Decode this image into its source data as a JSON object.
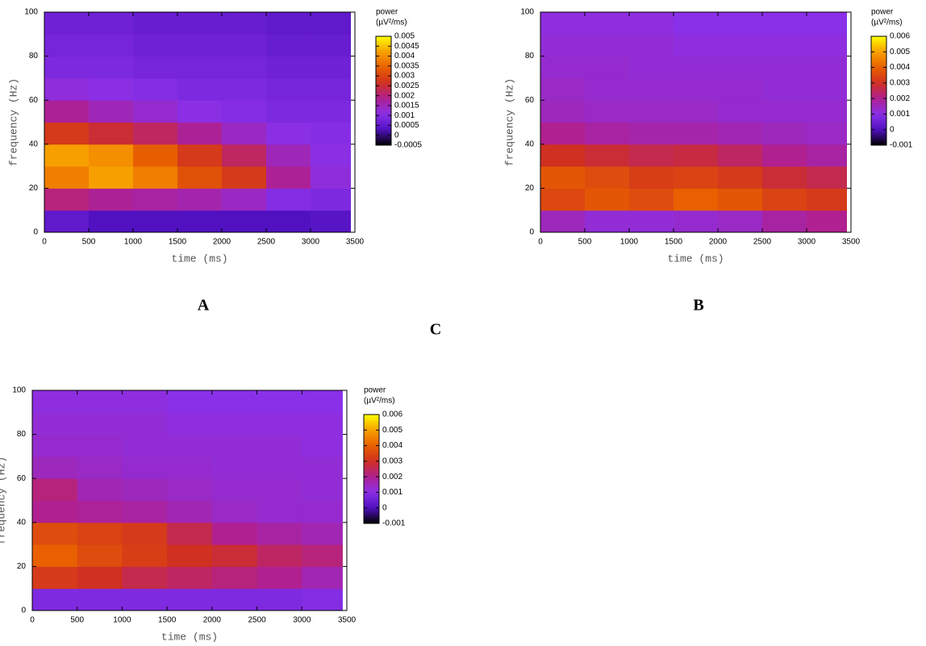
{
  "chart_data": [
    {
      "type": "heatmap",
      "panel_label": "A",
      "xlabel": "time (ms)",
      "ylabel": "frequency (Hz)",
      "colorbar_title": "power",
      "colorbar_unit": "(µV²/ms)",
      "xlim": [
        0,
        3500
      ],
      "xticks": [
        0,
        500,
        1000,
        1500,
        2000,
        2500,
        3000,
        3500
      ],
      "ylim": [
        0,
        100
      ],
      "yticks": [
        0,
        20,
        40,
        60,
        80,
        100
      ],
      "zlim": [
        -0.0005,
        0.005
      ],
      "zticks": [
        -0.0005,
        0,
        0.0005,
        0.001,
        0.0015,
        0.002,
        0.0025,
        0.003,
        0.0035,
        0.004,
        0.0045,
        0.005
      ],
      "colormap": [
        "#000000",
        "#5010c0",
        "#8a30e8",
        "#b02090",
        "#d03020",
        "#e86000",
        "#f8a000",
        "#ffff00"
      ],
      "x_edges": [
        0,
        500,
        1000,
        1500,
        2000,
        2500,
        3000,
        3450
      ],
      "y_edges": [
        0,
        10,
        20,
        30,
        40,
        50,
        60,
        70,
        80,
        90,
        100
      ],
      "z": [
        [
          0.0005,
          0.0003,
          0.0003,
          0.0003,
          0.0003,
          0.0003,
          0.0004
        ],
        [
          0.002,
          0.0018,
          0.0017,
          0.0016,
          0.0014,
          0.001,
          0.0009
        ],
        [
          0.0038,
          0.0042,
          0.0038,
          0.0032,
          0.0028,
          0.0018,
          0.0012
        ],
        [
          0.0042,
          0.004,
          0.0034,
          0.0028,
          0.0022,
          0.0015,
          0.0011
        ],
        [
          0.0028,
          0.0025,
          0.0022,
          0.0018,
          0.0014,
          0.0011,
          0.001
        ],
        [
          0.0018,
          0.0015,
          0.0013,
          0.0011,
          0.001,
          0.0009,
          0.0009
        ],
        [
          0.0012,
          0.0011,
          0.001,
          0.0009,
          0.0009,
          0.0008,
          0.0008
        ],
        [
          0.0009,
          0.0009,
          0.0008,
          0.0008,
          0.0008,
          0.0007,
          0.0007
        ],
        [
          0.0008,
          0.0008,
          0.0007,
          0.0007,
          0.0007,
          0.0006,
          0.0006
        ],
        [
          0.0007,
          0.0007,
          0.0006,
          0.0006,
          0.0006,
          0.0005,
          0.0005
        ]
      ]
    },
    {
      "type": "heatmap",
      "panel_label": "B",
      "xlabel": "time (ms)",
      "ylabel": "frequency (Hz)",
      "colorbar_title": "power",
      "colorbar_unit": "(µV²/ms)",
      "xlim": [
        0,
        3500
      ],
      "xticks": [
        0,
        500,
        1000,
        1500,
        2000,
        2500,
        3000,
        3500
      ],
      "ylim": [
        0,
        100
      ],
      "yticks": [
        0,
        20,
        40,
        60,
        80,
        100
      ],
      "zlim": [
        -0.001,
        0.006
      ],
      "zticks": [
        -0.001,
        0,
        0.001,
        0.002,
        0.003,
        0.004,
        0.005,
        0.006
      ],
      "colormap": [
        "#000000",
        "#5010c0",
        "#8a30e8",
        "#b02090",
        "#d03020",
        "#e86000",
        "#f8a000",
        "#ffff00"
      ],
      "x_edges": [
        0,
        500,
        1000,
        1500,
        2000,
        2500,
        3000,
        3450
      ],
      "y_edges": [
        0,
        10,
        20,
        30,
        40,
        50,
        60,
        70,
        80,
        90,
        100
      ],
      "z": [
        [
          0.0015,
          0.0012,
          0.0012,
          0.0013,
          0.0014,
          0.0018,
          0.002
        ],
        [
          0.0035,
          0.0038,
          0.0036,
          0.004,
          0.0038,
          0.0034,
          0.0032
        ],
        [
          0.0038,
          0.0036,
          0.0033,
          0.0034,
          0.0032,
          0.0028,
          0.0026
        ],
        [
          0.003,
          0.0028,
          0.0026,
          0.0027,
          0.0024,
          0.002,
          0.0018
        ],
        [
          0.002,
          0.0018,
          0.0017,
          0.0017,
          0.0016,
          0.0015,
          0.0014
        ],
        [
          0.0015,
          0.0014,
          0.0014,
          0.0014,
          0.0013,
          0.0013,
          0.0013
        ],
        [
          0.0014,
          0.0013,
          0.0013,
          0.0013,
          0.0013,
          0.0012,
          0.0012
        ],
        [
          0.0013,
          0.0013,
          0.0012,
          0.0012,
          0.0012,
          0.0012,
          0.0012
        ],
        [
          0.0012,
          0.0012,
          0.0012,
          0.0011,
          0.0011,
          0.0011,
          0.0011
        ],
        [
          0.0011,
          0.0011,
          0.0011,
          0.001,
          0.001,
          0.001,
          0.001
        ]
      ]
    },
    {
      "type": "heatmap",
      "panel_label": "C",
      "xlabel": "time (ms)",
      "ylabel": "frequency (Hz)",
      "colorbar_title": "power",
      "colorbar_unit": "(µV²/ms)",
      "xlim": [
        0,
        3500
      ],
      "xticks": [
        0,
        500,
        1000,
        1500,
        2000,
        2500,
        3000,
        3500
      ],
      "ylim": [
        0,
        100
      ],
      "yticks": [
        0,
        20,
        40,
        60,
        80,
        100
      ],
      "zlim": [
        -0.001,
        0.006
      ],
      "zticks": [
        -0.001,
        0,
        0.001,
        0.002,
        0.003,
        0.004,
        0.005,
        0.006
      ],
      "colormap": [
        "#000000",
        "#5010c0",
        "#8a30e8",
        "#b02090",
        "#d03020",
        "#e86000",
        "#f8a000",
        "#ffff00"
      ],
      "x_edges": [
        0,
        500,
        1000,
        1500,
        2000,
        2500,
        3000,
        3450
      ],
      "y_edges": [
        0,
        10,
        20,
        30,
        40,
        50,
        60,
        70,
        80,
        90,
        100
      ],
      "z": [
        [
          0.0008,
          0.0008,
          0.0008,
          0.0008,
          0.0008,
          0.0008,
          0.0009
        ],
        [
          0.0032,
          0.003,
          0.0026,
          0.0024,
          0.0022,
          0.002,
          0.0016
        ],
        [
          0.004,
          0.0036,
          0.0033,
          0.003,
          0.0028,
          0.0024,
          0.0022
        ],
        [
          0.0036,
          0.0034,
          0.0032,
          0.0026,
          0.002,
          0.0018,
          0.0016
        ],
        [
          0.002,
          0.0019,
          0.0018,
          0.0016,
          0.0014,
          0.0013,
          0.0013
        ],
        [
          0.0022,
          0.0016,
          0.0015,
          0.0014,
          0.0013,
          0.0013,
          0.0012
        ],
        [
          0.0015,
          0.0014,
          0.0013,
          0.0013,
          0.0012,
          0.0012,
          0.0012
        ],
        [
          0.0013,
          0.0013,
          0.0012,
          0.0012,
          0.0012,
          0.0012,
          0.0011
        ],
        [
          0.0012,
          0.0012,
          0.0012,
          0.0011,
          0.0011,
          0.0011,
          0.0011
        ],
        [
          0.0011,
          0.0011,
          0.0011,
          0.001,
          0.001,
          0.001,
          0.001
        ]
      ]
    }
  ]
}
